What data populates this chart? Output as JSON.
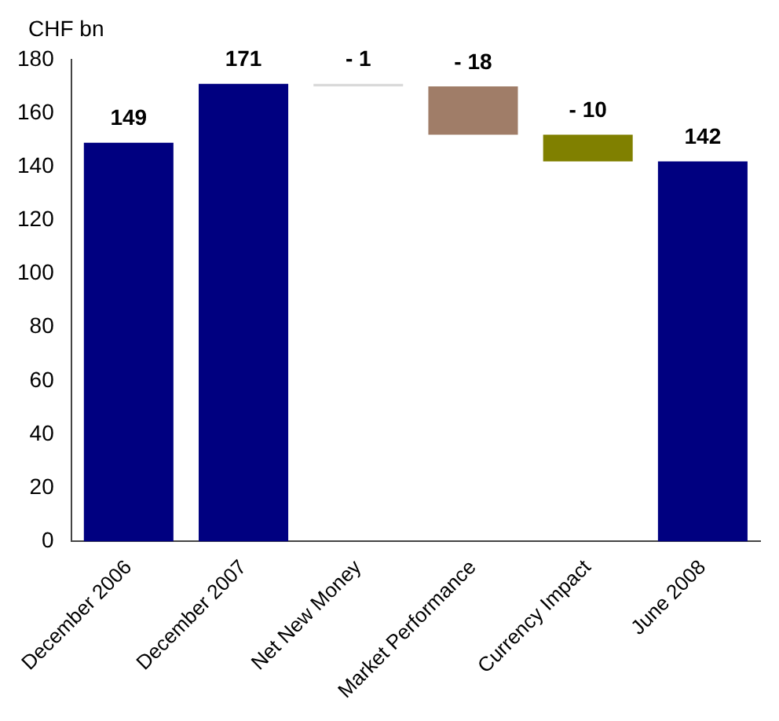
{
  "chart_data": {
    "type": "bar",
    "ylabel": "CHF bn",
    "categories": [
      "December 2006",
      "December 2007",
      "Net New Money",
      "Market Performance",
      "Currency Impact",
      "June 2008"
    ],
    "values": [
      149,
      171,
      -1,
      -18,
      -10,
      142
    ],
    "base": [
      0,
      0,
      171,
      170,
      152,
      0
    ],
    "colors": [
      "#000080",
      "#000080",
      "#d9d9d9",
      "#a07d68",
      "#808000",
      "#000080"
    ],
    "value_labels": [
      "149",
      "171",
      "- 1",
      "- 18",
      "- 10",
      "142"
    ],
    "ylim": [
      0,
      180
    ],
    "yticks": [
      0,
      20,
      40,
      60,
      80,
      100,
      120,
      140,
      160,
      180
    ],
    "grid": false,
    "legend": false
  }
}
